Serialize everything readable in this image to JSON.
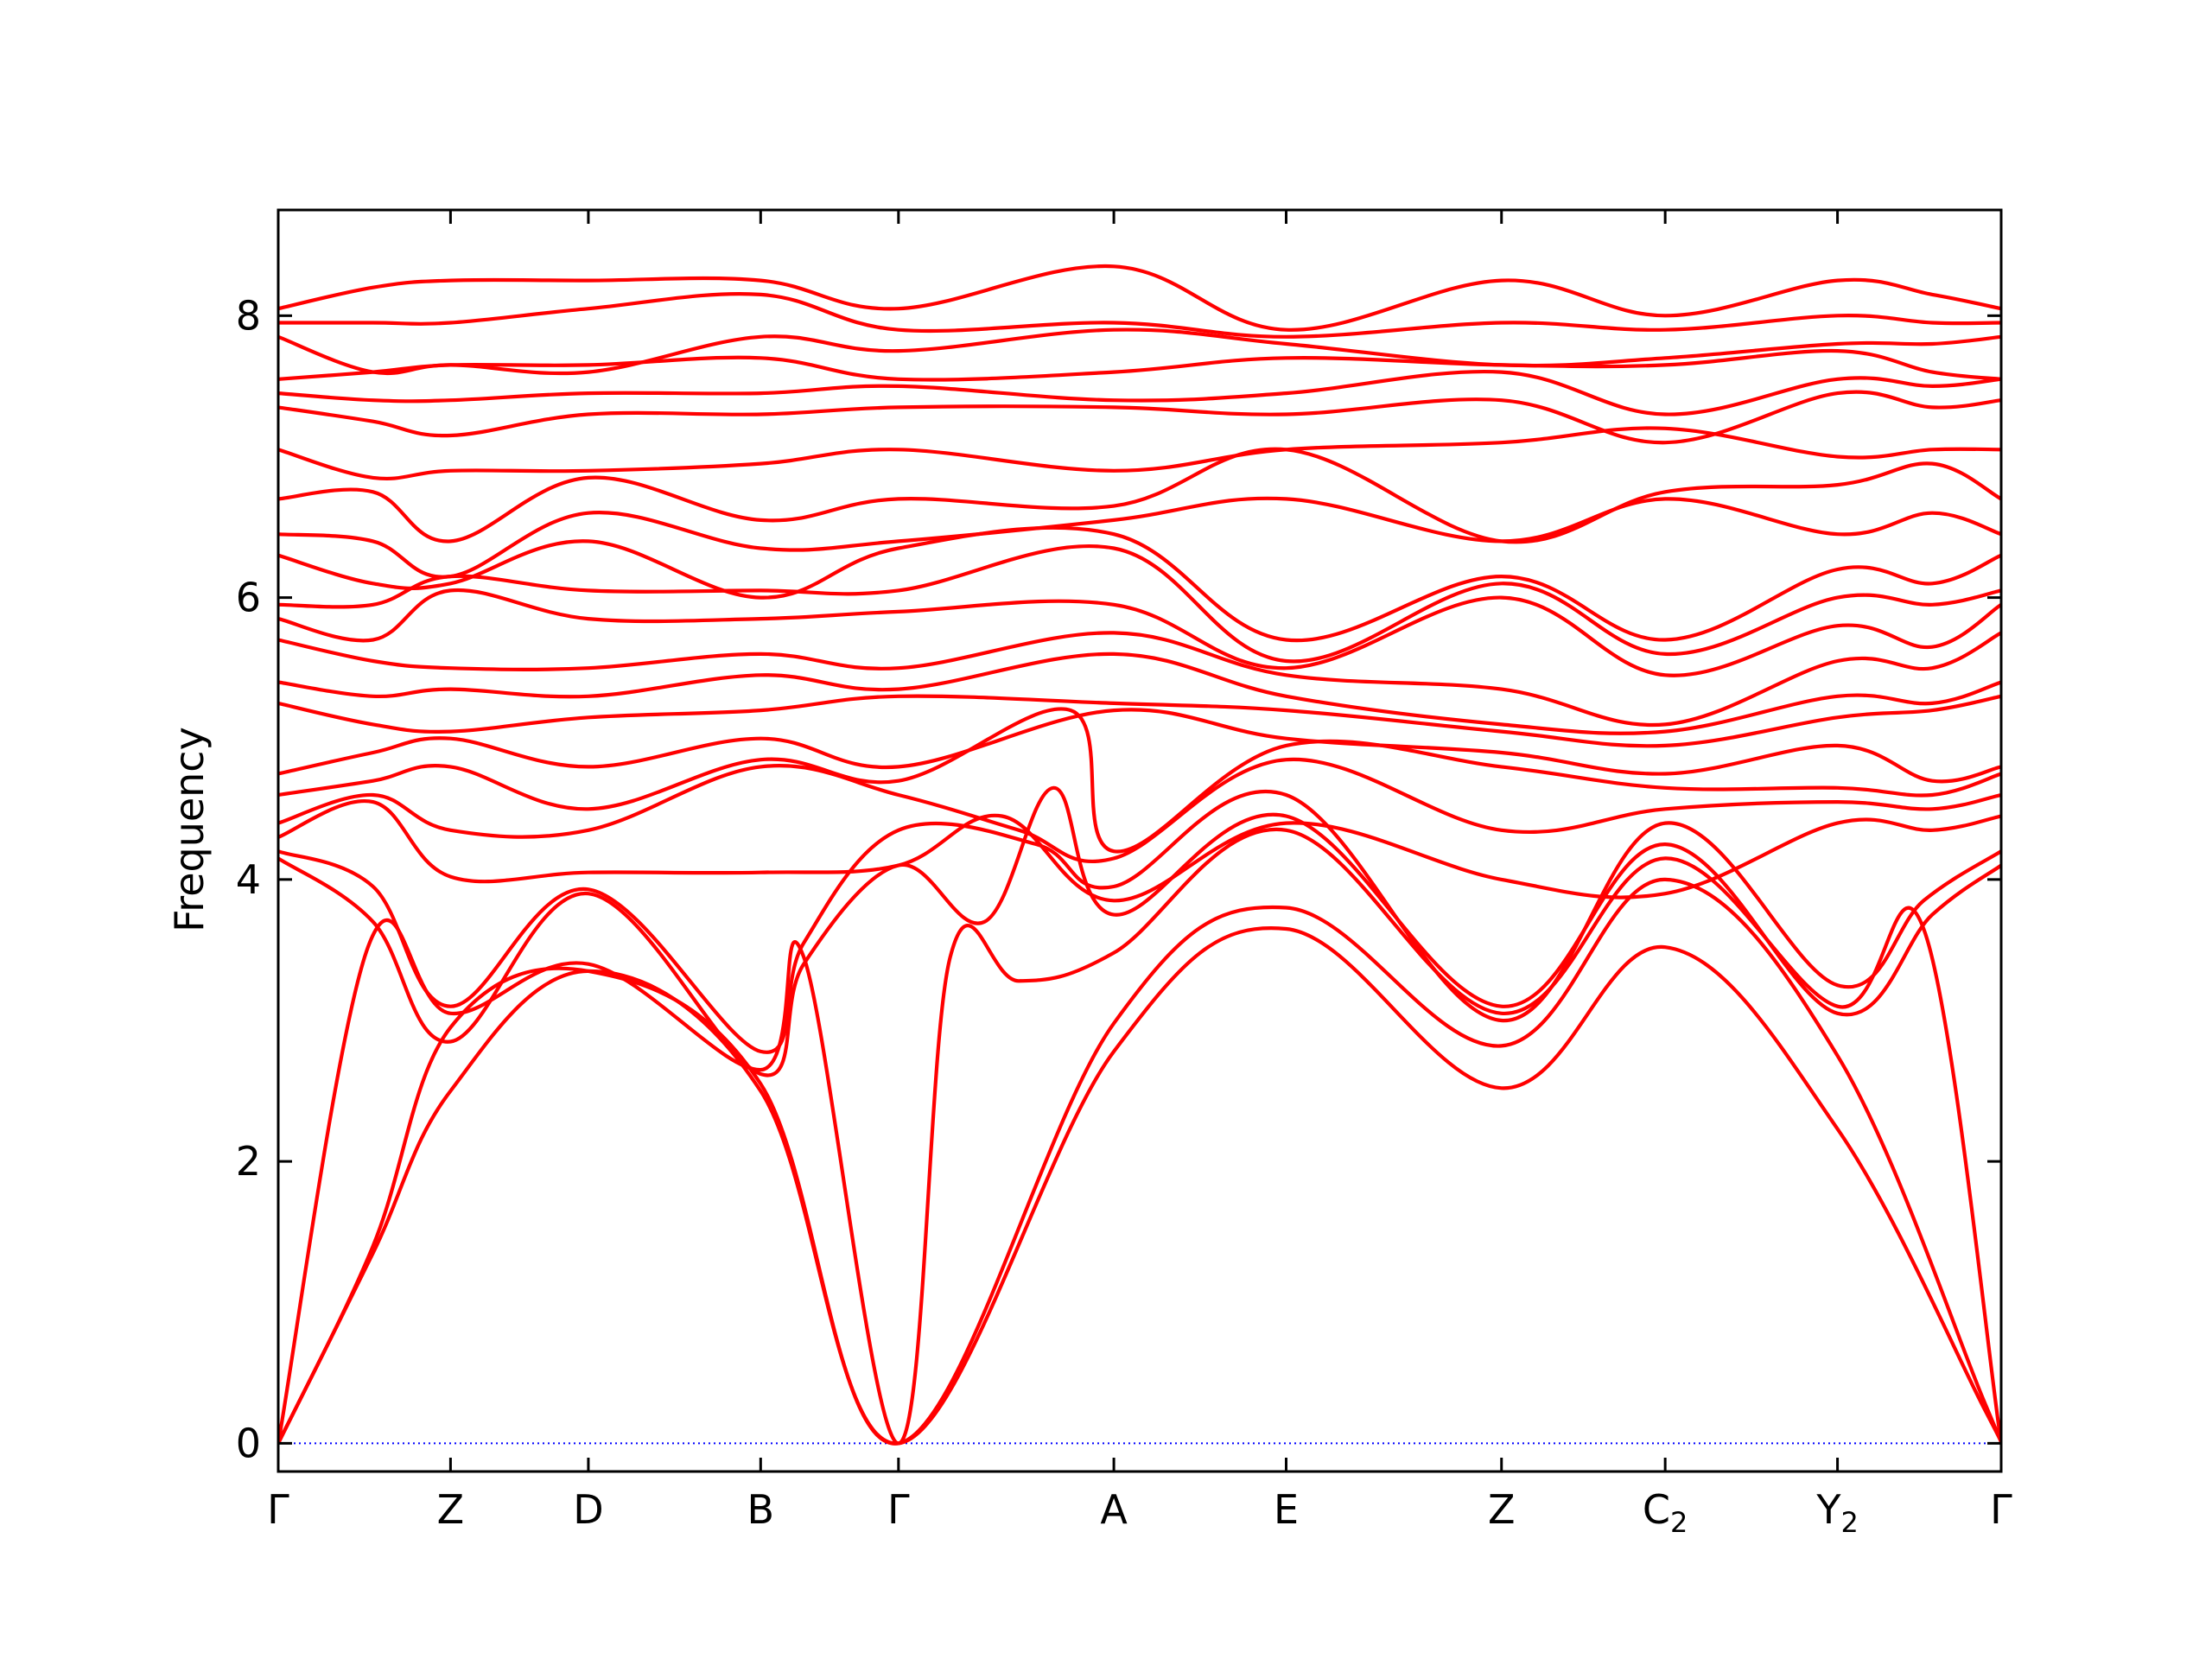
{
  "chart_data": {
    "type": "line",
    "title": "",
    "xlabel": "",
    "ylabel": "Frequency",
    "ylim": [
      -0.2,
      8.75
    ],
    "yticks": [
      0,
      2,
      4,
      6,
      8
    ],
    "high_symmetry_points": [
      {
        "label": "Γ",
        "x": 0
      },
      {
        "label": "Z",
        "x": 1.0
      },
      {
        "label": "D",
        "x": 1.8
      },
      {
        "label": "B",
        "x": 2.8
      },
      {
        "label": "Γ",
        "x": 3.6
      },
      {
        "label": "A",
        "x": 4.85
      },
      {
        "label": "E",
        "x": 5.85
      },
      {
        "label": "Z",
        "x": 7.1
      },
      {
        "label": "C",
        "sub": "2",
        "x": 8.05
      },
      {
        "label": "Y",
        "sub": "2",
        "x": 9.05
      },
      {
        "label": "Γ",
        "x": 10.0
      }
    ],
    "xlim": [
      0,
      10.0
    ],
    "zero_line": {
      "y": 0,
      "color": "#0000ff",
      "style": "dotted"
    },
    "line_color": "#ff0000",
    "series": [
      {
        "x": [
          0,
          0.55,
          1.0,
          1.8,
          2.8,
          3.6,
          4.85,
          5.85,
          7.1,
          8.05,
          9.05,
          9.9,
          10.0
        ],
        "values": [
          0,
          1.35,
          2.5,
          3.35,
          2.5,
          0,
          2.78,
          3.65,
          2.52,
          3.52,
          2.23,
          0.25,
          0
        ]
      },
      {
        "x": [
          0,
          0.55,
          1.0,
          1.8,
          2.8,
          3.6,
          4.85,
          5.85,
          7.1,
          8.05,
          9.05,
          9.9,
          10.0
        ],
        "values": [
          0,
          1.4,
          2.95,
          3.35,
          2.55,
          0,
          2.98,
          3.8,
          2.82,
          4.0,
          2.75,
          0.3,
          0
        ]
      },
      {
        "x": [
          0,
          0.53,
          1.0,
          1.8,
          2.8,
          3.05,
          3.6,
          3.9,
          4.3,
          4.85,
          5.85,
          7.1,
          8.05,
          9.05,
          9.55,
          10.0
        ],
        "values": [
          0,
          3.55,
          3.05,
          3.4,
          2.65,
          3.45,
          0,
          3.45,
          3.28,
          3.48,
          4.35,
          3.05,
          4.15,
          3.1,
          3.65,
          0
        ]
      },
      {
        "x": [
          0,
          0.55,
          1.0,
          1.8,
          2.8,
          3.05,
          3.6,
          4.1,
          4.5,
          4.85,
          5.85,
          7.1,
          8.05,
          9.05,
          9.6,
          10.0
        ],
        "values": [
          4.15,
          3.7,
          2.85,
          3.9,
          2.62,
          3.4,
          4.1,
          3.7,
          4.65,
          3.75,
          4.45,
          3.1,
          4.25,
          3.05,
          3.75,
          4.1
        ]
      },
      {
        "x": [
          0,
          0.55,
          1.0,
          1.8,
          2.8,
          3.05,
          3.6,
          4.4,
          4.85,
          5.85,
          7.1,
          8.05,
          9.05,
          9.55,
          10.0
        ],
        "values": [
          4.2,
          3.95,
          3.1,
          3.93,
          2.78,
          3.55,
          4.35,
          4.25,
          3.95,
          4.6,
          3.0,
          4.4,
          3.25,
          3.85,
          4.2
        ]
      },
      {
        "x": [
          0,
          0.55,
          1.0,
          1.8,
          2.8,
          3.6,
          4.2,
          4.85,
          5.85,
          7.1,
          8.05,
          9.05,
          9.6,
          10.0
        ],
        "values": [
          4.3,
          4.55,
          4.02,
          4.05,
          4.05,
          4.1,
          4.45,
          3.85,
          4.4,
          4.0,
          3.9,
          4.4,
          4.35,
          4.45
        ]
      },
      {
        "x": [
          0,
          0.55,
          1.0,
          1.8,
          2.8,
          3.6,
          4.3,
          4.85,
          5.85,
          7.1,
          8.05,
          9.05,
          9.6,
          10.0
        ],
        "values": [
          4.4,
          4.6,
          4.35,
          4.35,
          4.8,
          4.6,
          4.35,
          4.15,
          4.85,
          4.35,
          4.5,
          4.55,
          4.5,
          4.6
        ]
      },
      {
        "x": [
          0,
          0.55,
          1.0,
          1.8,
          2.8,
          3.6,
          4.6,
          4.85,
          5.85,
          7.1,
          8.05,
          9.05,
          9.6,
          10.0
        ],
        "values": [
          4.6,
          4.7,
          4.8,
          4.5,
          4.85,
          4.7,
          5.2,
          4.2,
          4.95,
          4.8,
          4.65,
          4.65,
          4.6,
          4.75
        ]
      },
      {
        "x": [
          0,
          0.55,
          1.0,
          1.8,
          2.8,
          3.6,
          4.85,
          5.85,
          7.1,
          8.05,
          9.05,
          9.6,
          10.0
        ],
        "values": [
          4.75,
          4.9,
          5.0,
          4.8,
          5.0,
          4.8,
          5.2,
          5.0,
          4.9,
          4.75,
          4.95,
          4.7,
          4.8
        ]
      },
      {
        "x": [
          0,
          0.55,
          1.0,
          1.8,
          2.8,
          3.6,
          4.85,
          5.85,
          7.1,
          8.05,
          9.05,
          9.6,
          10.0
        ],
        "values": [
          5.25,
          5.1,
          5.05,
          5.15,
          5.2,
          5.3,
          5.25,
          5.2,
          5.05,
          4.95,
          5.15,
          5.2,
          5.3
        ]
      },
      {
        "x": [
          0,
          0.55,
          1.0,
          1.8,
          2.8,
          3.6,
          4.85,
          5.85,
          7.1,
          8.05,
          9.05,
          9.6,
          10.0
        ],
        "values": [
          5.4,
          5.3,
          5.35,
          5.3,
          5.45,
          5.35,
          5.6,
          5.3,
          5.1,
          5.05,
          5.3,
          5.25,
          5.4
        ]
      },
      {
        "x": [
          0,
          0.55,
          1.0,
          1.8,
          2.8,
          3.6,
          4.85,
          5.85,
          7.1,
          8.05,
          9.05,
          9.6,
          10.0
        ],
        "values": [
          5.7,
          5.55,
          5.5,
          5.5,
          5.6,
          5.5,
          5.75,
          5.45,
          5.35,
          5.1,
          5.55,
          5.5,
          5.75
        ]
      },
      {
        "x": [
          0,
          0.55,
          1.0,
          1.8,
          2.8,
          3.6,
          4.85,
          5.85,
          7.1,
          8.05,
          9.05,
          9.6,
          10.0
        ],
        "values": [
          5.85,
          5.7,
          6.05,
          5.85,
          5.85,
          5.9,
          5.95,
          5.5,
          6.0,
          5.45,
          5.8,
          5.65,
          5.95
        ]
      },
      {
        "x": [
          0,
          0.55,
          1.0,
          1.8,
          2.8,
          3.6,
          4.85,
          5.85,
          7.1,
          8.05,
          9.05,
          9.6,
          10.0
        ],
        "values": [
          5.95,
          5.95,
          6.15,
          6.05,
          6.05,
          6.05,
          6.35,
          5.55,
          6.1,
          5.6,
          6.0,
          5.95,
          6.05
        ]
      },
      {
        "x": [
          0,
          0.55,
          1.0,
          1.8,
          2.8,
          3.6,
          4.85,
          5.85,
          7.1,
          8.05,
          9.05,
          9.6,
          10.0
        ],
        "values": [
          6.3,
          6.1,
          6.1,
          6.4,
          6.0,
          6.35,
          6.45,
          5.7,
          6.15,
          5.7,
          6.2,
          6.1,
          6.3
        ]
      },
      {
        "x": [
          0,
          0.55,
          1.0,
          1.8,
          2.8,
          3.6,
          4.85,
          5.85,
          7.1,
          8.05,
          9.05,
          9.6,
          10.0
        ],
        "values": [
          6.45,
          6.4,
          6.15,
          6.6,
          6.35,
          6.4,
          6.55,
          6.7,
          6.4,
          6.7,
          6.45,
          6.6,
          6.45
        ]
      },
      {
        "x": [
          0,
          0.55,
          1.0,
          1.8,
          2.8,
          3.6,
          4.85,
          5.85,
          7.1,
          8.05,
          9.05,
          9.6,
          10.0
        ],
        "values": [
          6.7,
          6.75,
          6.4,
          6.85,
          6.55,
          6.7,
          6.65,
          7.05,
          6.4,
          6.75,
          6.8,
          6.95,
          6.7
        ]
      },
      {
        "x": [
          0,
          0.55,
          1.0,
          1.8,
          2.8,
          3.6,
          4.85,
          5.85,
          7.1,
          8.05,
          9.05,
          9.6,
          10.0
        ],
        "values": [
          7.05,
          6.85,
          6.9,
          6.9,
          6.95,
          7.05,
          6.9,
          7.05,
          7.1,
          7.2,
          7.0,
          7.05,
          7.05
        ]
      },
      {
        "x": [
          0,
          0.55,
          1.0,
          1.8,
          2.8,
          3.6,
          4.85,
          5.85,
          7.1,
          8.05,
          9.05,
          9.6,
          10.0
        ],
        "values": [
          7.35,
          7.25,
          7.15,
          7.3,
          7.3,
          7.35,
          7.35,
          7.3,
          7.4,
          7.1,
          7.45,
          7.35,
          7.4
        ]
      },
      {
        "x": [
          0,
          0.55,
          1.0,
          1.8,
          2.8,
          3.6,
          4.85,
          5.85,
          7.1,
          8.05,
          9.05,
          9.6,
          10.0
        ],
        "values": [
          7.45,
          7.4,
          7.4,
          7.45,
          7.45,
          7.5,
          7.4,
          7.45,
          7.6,
          7.3,
          7.55,
          7.5,
          7.55
        ]
      },
      {
        "x": [
          0,
          0.55,
          1.0,
          1.8,
          2.8,
          3.6,
          4.85,
          5.85,
          7.1,
          8.05,
          9.05,
          9.6,
          10.0
        ],
        "values": [
          7.55,
          7.6,
          7.65,
          7.65,
          7.7,
          7.55,
          7.6,
          7.7,
          7.65,
          7.65,
          7.75,
          7.6,
          7.55
        ]
      },
      {
        "x": [
          0,
          0.55,
          1.0,
          1.8,
          2.8,
          3.6,
          4.85,
          5.85,
          7.1,
          8.05,
          9.05,
          9.6,
          10.0
        ],
        "values": [
          7.85,
          7.6,
          7.65,
          7.6,
          7.85,
          7.75,
          7.9,
          7.8,
          7.65,
          7.7,
          7.8,
          7.8,
          7.85
        ]
      },
      {
        "x": [
          0,
          0.55,
          1.0,
          1.8,
          2.8,
          3.6,
          4.85,
          5.85,
          7.1,
          8.05,
          9.05,
          9.6,
          10.0
        ],
        "values": [
          7.95,
          7.95,
          7.95,
          8.05,
          8.15,
          7.9,
          7.95,
          7.85,
          7.95,
          7.9,
          8.0,
          7.95,
          7.95
        ]
      },
      {
        "x": [
          0,
          0.55,
          1.0,
          1.8,
          2.8,
          3.6,
          4.85,
          5.85,
          7.1,
          8.05,
          9.05,
          9.6,
          10.0
        ],
        "values": [
          8.05,
          8.2,
          8.25,
          8.25,
          8.25,
          8.05,
          8.35,
          7.9,
          8.25,
          8.0,
          8.25,
          8.15,
          8.05
        ]
      }
    ]
  }
}
